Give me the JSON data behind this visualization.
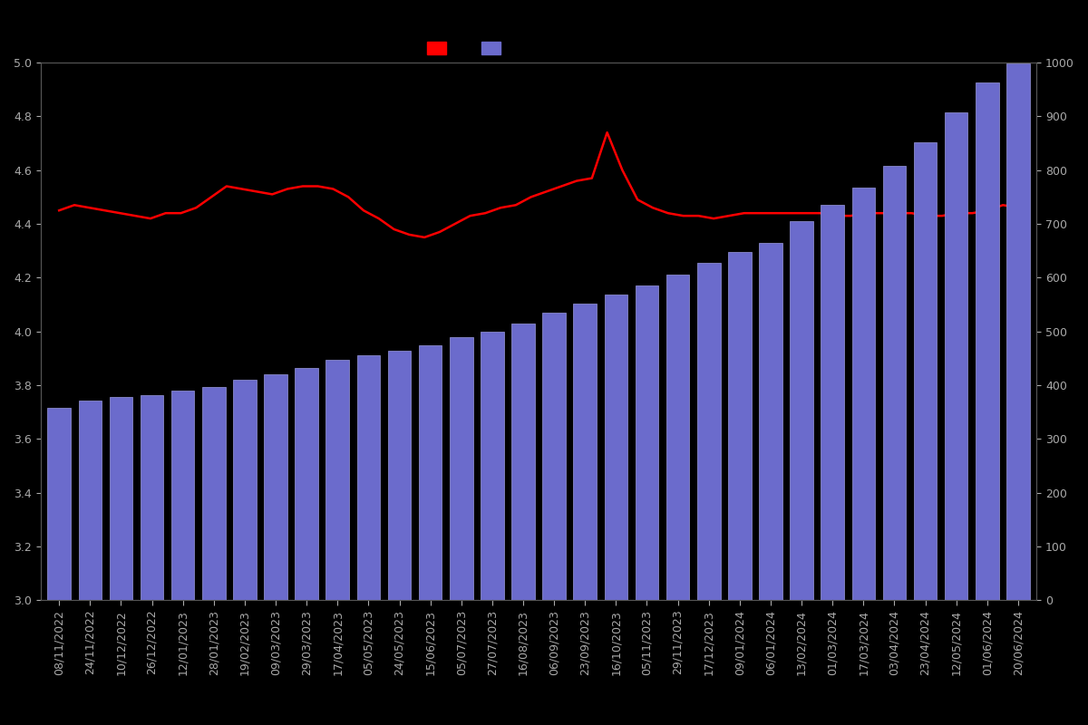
{
  "background_color": "#000000",
  "bar_color": "#6B6BCC",
  "bar_edge_color": "#9999DD",
  "line_color": "#ff0000",
  "left_ylim": [
    3.0,
    5.0
  ],
  "right_ylim": [
    0,
    1000
  ],
  "left_yticks": [
    3.0,
    3.2,
    3.4,
    3.6,
    3.8,
    4.0,
    4.2,
    4.4,
    4.6,
    4.8,
    5.0
  ],
  "right_yticks": [
    0,
    100,
    200,
    300,
    400,
    500,
    600,
    700,
    800,
    900,
    1000
  ],
  "dates": [
    "08/11/2022",
    "24/11/2022",
    "10/12/2022",
    "26/12/2022",
    "12/01/2023",
    "28/01/2023",
    "19/02/2023",
    "09/03/2023",
    "29/03/2023",
    "17/04/2023",
    "05/05/2023",
    "24/05/2023",
    "15/06/2023",
    "05/07/2023",
    "27/07/2023",
    "16/08/2023",
    "06/09/2023",
    "23/09/2023",
    "16/10/2023",
    "05/11/2023",
    "29/11/2023",
    "17/12/2023",
    "09/01/2024",
    "06/01/2024",
    "13/02/2024",
    "01/03/2024",
    "17/03/2024",
    "03/04/2024",
    "23/04/2024",
    "12/05/2024",
    "01/06/2024",
    "20/06/2024"
  ],
  "bar_values": [
    358,
    372,
    378,
    381,
    390,
    397,
    410,
    420,
    432,
    448,
    455,
    465,
    475,
    490,
    500,
    515,
    535,
    552,
    568,
    585,
    605,
    628,
    648,
    665,
    705,
    735,
    768,
    808,
    852,
    908,
    963,
    998
  ],
  "line_values": [
    4.45,
    4.47,
    4.46,
    4.45,
    4.44,
    4.43,
    4.42,
    4.44,
    4.44,
    4.46,
    4.5,
    4.54,
    4.53,
    4.52,
    4.51,
    4.53,
    4.54,
    4.54,
    4.53,
    4.5,
    4.45,
    4.42,
    4.38,
    4.36,
    4.35,
    4.37,
    4.4,
    4.43,
    4.44,
    4.46,
    4.47,
    4.5,
    4.52,
    4.54,
    4.56,
    4.57,
    4.74,
    4.6,
    4.49,
    4.46,
    4.44,
    4.43,
    4.43,
    4.42,
    4.43,
    4.44,
    4.44,
    4.44,
    4.44,
    4.44,
    4.44,
    4.43,
    4.43,
    4.44,
    4.44,
    4.44,
    4.44,
    4.43,
    4.43,
    4.44,
    4.44,
    4.45,
    4.47,
    4.46
  ],
  "tick_color": "#aaaaaa",
  "tick_fontsize": 9,
  "spine_color": "#555555",
  "figsize": [
    12.0,
    8.0
  ],
  "dpi": 100
}
